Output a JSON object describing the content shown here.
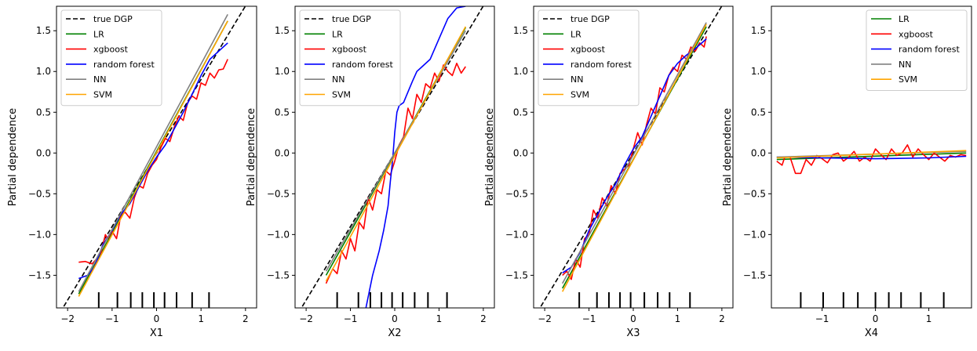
{
  "colors": {
    "true DGP": "#000000",
    "LR": "#008000",
    "xgboost": "#ff0000",
    "random forest": "#0000ff",
    "NN": "#808080",
    "SVM": "#ffa500"
  },
  "chart_data": [
    {
      "type": "line",
      "xlabel": "X1",
      "ylabel": "Partial dependence",
      "xlim": [
        -2.25,
        2.25
      ],
      "ylim": [
        -1.9,
        1.8
      ],
      "xticks": [
        -2,
        -1,
        0,
        1,
        2
      ],
      "yticks": [
        -1.5,
        -1.0,
        -0.5,
        0.0,
        0.5,
        1.0,
        1.5
      ],
      "legend": {
        "position": "top-left",
        "entries": [
          "true DGP",
          "LR",
          "xgboost",
          "random forest",
          "NN",
          "SVM"
        ]
      },
      "rug": [
        -1.3,
        -0.88,
        -0.58,
        -0.32,
        -0.06,
        0.18,
        0.45,
        0.8,
        1.18
      ],
      "series": [
        {
          "name": "true DGP",
          "style": "dashed",
          "x": [
            -2.25,
            2.25
          ],
          "y": [
            -2.03,
            2.03
          ]
        },
        {
          "name": "LR",
          "x": [
            -1.75,
            1.6
          ],
          "y": [
            -1.73,
            1.62
          ]
        },
        {
          "name": "xgboost",
          "x": [
            -1.75,
            -1.6,
            -1.45,
            -1.35,
            -1.25,
            -1.15,
            -1.1,
            -1.0,
            -0.9,
            -0.8,
            -0.7,
            -0.6,
            -0.5,
            -0.4,
            -0.3,
            -0.2,
            -0.1,
            0.0,
            0.1,
            0.2,
            0.3,
            0.4,
            0.5,
            0.6,
            0.7,
            0.8,
            0.9,
            1.0,
            1.1,
            1.2,
            1.3,
            1.4,
            1.5,
            1.6
          ],
          "y": [
            -1.34,
            -1.33,
            -1.36,
            -1.3,
            -1.22,
            -1.0,
            -1.05,
            -0.96,
            -1.05,
            -0.75,
            -0.73,
            -0.8,
            -0.55,
            -0.4,
            -0.43,
            -0.25,
            -0.15,
            -0.08,
            0.07,
            0.18,
            0.14,
            0.32,
            0.45,
            0.4,
            0.62,
            0.7,
            0.66,
            0.86,
            0.83,
            0.98,
            0.92,
            1.02,
            1.03,
            1.15
          ]
        },
        {
          "name": "random forest",
          "x": [
            -1.75,
            -1.55,
            -1.4,
            -1.2,
            -1.0,
            -0.8,
            -0.6,
            -0.4,
            -0.2,
            0.0,
            0.2,
            0.4,
            0.6,
            0.8,
            1.0,
            1.2,
            1.4,
            1.6
          ],
          "y": [
            -1.54,
            -1.5,
            -1.4,
            -1.12,
            -0.95,
            -0.75,
            -0.62,
            -0.42,
            -0.22,
            -0.05,
            0.1,
            0.3,
            0.5,
            0.72,
            0.95,
            1.15,
            1.25,
            1.35
          ]
        },
        {
          "name": "NN",
          "x": [
            -1.75,
            1.6
          ],
          "y": [
            -1.7,
            1.7
          ]
        },
        {
          "name": "SVM",
          "x": [
            -1.75,
            1.6
          ],
          "y": [
            -1.76,
            1.62
          ]
        }
      ]
    },
    {
      "type": "line",
      "xlabel": "X2",
      "ylabel": "Partial dependence",
      "xlim": [
        -2.25,
        2.25
      ],
      "ylim": [
        -1.9,
        1.8
      ],
      "xticks": [
        -2,
        -1,
        0,
        1,
        2
      ],
      "yticks": [
        -1.5,
        -1.0,
        -0.5,
        0.0,
        0.5,
        1.0,
        1.5
      ],
      "legend": {
        "position": "top-left",
        "entries": [
          "true DGP",
          "LR",
          "xgboost",
          "random forest",
          "NN",
          "SVM"
        ]
      },
      "rug": [
        -1.3,
        -0.82,
        -0.55,
        -0.3,
        -0.06,
        0.18,
        0.45,
        0.75,
        1.18
      ],
      "series": [
        {
          "name": "true DGP",
          "style": "dashed",
          "x": [
            -2.25,
            2.25
          ],
          "y": [
            -2.03,
            2.03
          ]
        },
        {
          "name": "LR",
          "x": [
            -1.55,
            1.6
          ],
          "y": [
            -1.5,
            1.54
          ]
        },
        {
          "name": "xgboost",
          "x": [
            -1.55,
            -1.4,
            -1.3,
            -1.2,
            -1.1,
            -1.0,
            -0.9,
            -0.8,
            -0.7,
            -0.6,
            -0.5,
            -0.4,
            -0.3,
            -0.2,
            -0.1,
            0.0,
            0.1,
            0.2,
            0.3,
            0.4,
            0.5,
            0.6,
            0.7,
            0.8,
            0.9,
            1.0,
            1.1,
            1.2,
            1.3,
            1.4,
            1.5,
            1.6
          ],
          "y": [
            -1.6,
            -1.42,
            -1.48,
            -1.2,
            -1.3,
            -1.05,
            -1.2,
            -0.85,
            -0.93,
            -0.55,
            -0.7,
            -0.45,
            -0.5,
            -0.22,
            -0.27,
            -0.1,
            0.1,
            0.2,
            0.55,
            0.42,
            0.72,
            0.62,
            0.85,
            0.8,
            0.98,
            0.88,
            1.08,
            1.0,
            0.95,
            1.1,
            0.98,
            1.06
          ]
        },
        {
          "name": "random forest",
          "x": [
            -0.65,
            -0.5,
            -0.35,
            -0.25,
            -0.15,
            -0.1,
            -0.05,
            0.0,
            0.05,
            0.1,
            0.2,
            0.3,
            0.4,
            0.5,
            0.6,
            0.8,
            1.0,
            1.2,
            1.4,
            1.6
          ],
          "y": [
            -1.9,
            -1.5,
            -1.2,
            -0.95,
            -0.65,
            -0.35,
            -0.1,
            0.25,
            0.5,
            0.58,
            0.62,
            0.75,
            0.88,
            1.0,
            1.05,
            1.15,
            1.4,
            1.65,
            1.78,
            1.8
          ]
        },
        {
          "name": "NN",
          "x": [
            -1.55,
            1.6
          ],
          "y": [
            -1.45,
            1.5
          ]
        },
        {
          "name": "SVM",
          "x": [
            -1.55,
            1.6
          ],
          "y": [
            -1.57,
            1.55
          ]
        }
      ]
    },
    {
      "type": "line",
      "xlabel": "X3",
      "ylabel": "Partial dependence",
      "xlim": [
        -2.25,
        2.25
      ],
      "ylim": [
        -1.9,
        1.8
      ],
      "xticks": [
        -2,
        -1,
        0,
        1,
        2
      ],
      "yticks": [
        -1.5,
        -1.0,
        -0.5,
        0.0,
        0.5,
        1.0,
        1.5
      ],
      "legend": {
        "position": "top-left",
        "entries": [
          "true DGP",
          "LR",
          "xgboost",
          "random forest",
          "NN",
          "SVM"
        ]
      },
      "rug": [
        -1.22,
        -0.82,
        -0.55,
        -0.3,
        -0.06,
        0.25,
        0.55,
        0.82,
        1.28
      ],
      "series": [
        {
          "name": "true DGP",
          "style": "dashed",
          "x": [
            -2.25,
            2.25
          ],
          "y": [
            -2.03,
            2.03
          ]
        },
        {
          "name": "LR",
          "x": [
            -1.6,
            1.65
          ],
          "y": [
            -1.66,
            1.55
          ]
        },
        {
          "name": "xgboost",
          "x": [
            -1.6,
            -1.5,
            -1.4,
            -1.3,
            -1.2,
            -1.1,
            -1.0,
            -0.9,
            -0.8,
            -0.7,
            -0.6,
            -0.5,
            -0.4,
            -0.3,
            -0.2,
            -0.1,
            0.0,
            0.1,
            0.2,
            0.3,
            0.4,
            0.5,
            0.6,
            0.7,
            0.8,
            0.9,
            1.0,
            1.1,
            1.2,
            1.3,
            1.4,
            1.5,
            1.6,
            1.65
          ],
          "y": [
            -1.5,
            -1.45,
            -1.55,
            -1.3,
            -1.4,
            -1.05,
            -1.0,
            -0.7,
            -0.8,
            -0.55,
            -0.65,
            -0.4,
            -0.5,
            -0.25,
            -0.2,
            -0.15,
            0.05,
            0.25,
            0.1,
            0.35,
            0.55,
            0.48,
            0.8,
            0.75,
            0.95,
            1.05,
            1.0,
            1.2,
            1.15,
            1.3,
            1.25,
            1.35,
            1.3,
            1.43
          ]
        },
        {
          "name": "random forest",
          "x": [
            -1.6,
            -1.4,
            -1.2,
            -1.0,
            -0.8,
            -0.6,
            -0.4,
            -0.2,
            0.0,
            0.2,
            0.4,
            0.6,
            0.8,
            1.0,
            1.2,
            1.4,
            1.65
          ],
          "y": [
            -1.47,
            -1.4,
            -1.22,
            -0.95,
            -0.75,
            -0.55,
            -0.38,
            -0.15,
            0.05,
            0.2,
            0.45,
            0.7,
            0.95,
            1.1,
            1.2,
            1.28,
            1.4
          ]
        },
        {
          "name": "NN",
          "x": [
            -1.6,
            1.65
          ],
          "y": [
            -1.6,
            1.6
          ]
        },
        {
          "name": "SVM",
          "x": [
            -1.6,
            1.65
          ],
          "y": [
            -1.7,
            1.58
          ]
        }
      ]
    },
    {
      "type": "line",
      "xlabel": "X4",
      "ylabel": "Partial dependence",
      "xlim": [
        -1.95,
        1.8
      ],
      "ylim": [
        -1.9,
        1.8
      ],
      "xticks": [
        -1,
        0,
        1
      ],
      "yticks": [
        -1.5,
        -1.0,
        -0.5,
        0.0,
        0.5,
        1.0,
        1.5
      ],
      "legend": {
        "position": "top-right",
        "entries": [
          "LR",
          "xgboost",
          "random forest",
          "NN",
          "SVM"
        ]
      },
      "rug": [
        -1.4,
        -0.98,
        -0.6,
        -0.33,
        0.0,
        0.25,
        0.48,
        0.85,
        1.28
      ],
      "series": [
        {
          "name": "LR",
          "x": [
            -1.85,
            1.7
          ],
          "y": [
            -0.08,
            0.0
          ]
        },
        {
          "name": "xgboost",
          "x": [
            -1.85,
            -1.75,
            -1.7,
            -1.6,
            -1.5,
            -1.4,
            -1.3,
            -1.2,
            -1.1,
            -1.0,
            -0.9,
            -0.8,
            -0.7,
            -0.6,
            -0.5,
            -0.4,
            -0.3,
            -0.2,
            -0.1,
            0.0,
            0.1,
            0.2,
            0.3,
            0.4,
            0.5,
            0.6,
            0.7,
            0.8,
            0.9,
            1.0,
            1.1,
            1.2,
            1.3,
            1.4,
            1.5,
            1.6,
            1.7
          ],
          "y": [
            -0.1,
            -0.15,
            -0.05,
            -0.05,
            -0.25,
            -0.25,
            -0.08,
            -0.15,
            -0.03,
            -0.07,
            -0.12,
            -0.02,
            0.0,
            -0.1,
            -0.05,
            0.02,
            -0.1,
            -0.05,
            -0.1,
            0.05,
            -0.02,
            -0.08,
            0.05,
            -0.03,
            0.0,
            0.1,
            -0.05,
            0.05,
            -0.02,
            -0.08,
            0.0,
            -0.05,
            -0.1,
            -0.03,
            -0.05,
            -0.02,
            -0.03
          ]
        },
        {
          "name": "random forest",
          "x": [
            -1.85,
            -1.0,
            0.0,
            1.0,
            1.7
          ],
          "y": [
            -0.05,
            -0.06,
            -0.07,
            -0.06,
            -0.04
          ]
        },
        {
          "name": "NN",
          "x": [
            -1.85,
            1.7
          ],
          "y": [
            -0.05,
            0.02
          ]
        },
        {
          "name": "SVM",
          "x": [
            -1.85,
            1.7
          ],
          "y": [
            -0.06,
            0.03
          ]
        }
      ]
    }
  ]
}
